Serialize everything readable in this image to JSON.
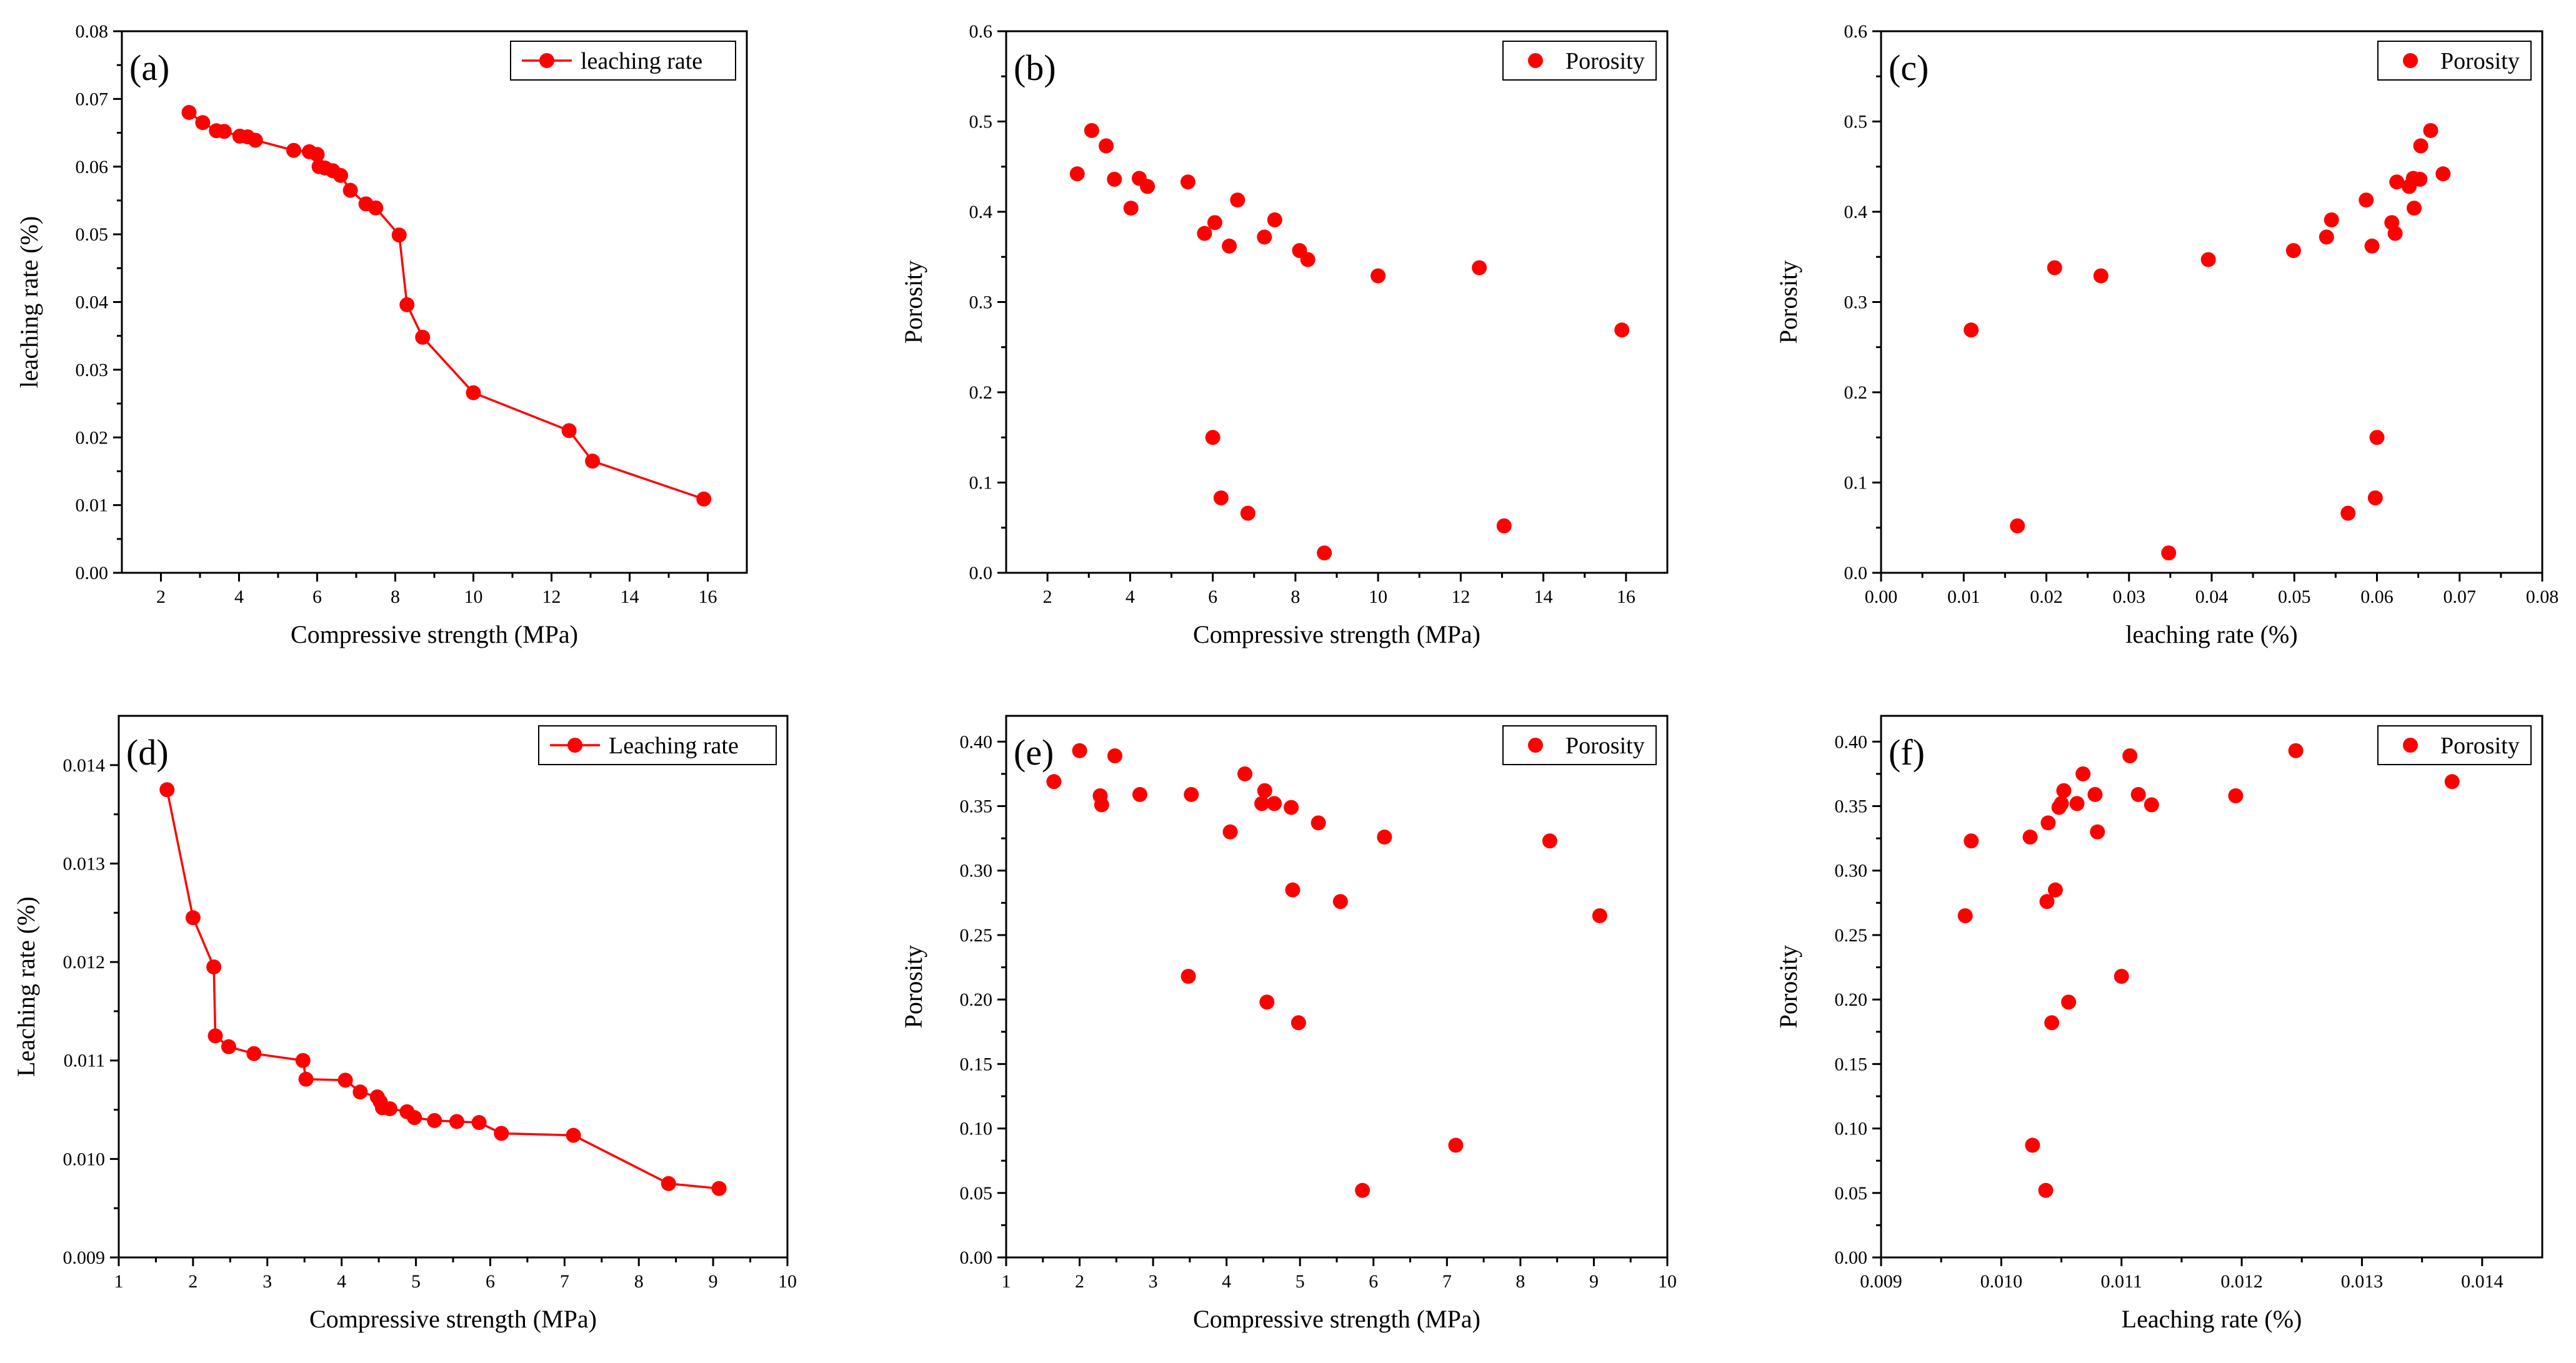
{
  "accent_color": "#ff0000",
  "chart_data": [
    {
      "id": "a",
      "panel_label": "(a)",
      "type": "line",
      "xlabel": "Compressive strength (MPa)",
      "ylabel": "leaching rate (%)",
      "xlim": [
        1,
        17
      ],
      "ylim": [
        0,
        0.08
      ],
      "xticks": [
        2,
        4,
        6,
        8,
        10,
        12,
        14,
        16
      ],
      "yticks": [
        0.0,
        0.01,
        0.02,
        0.03,
        0.04,
        0.05,
        0.06,
        0.07,
        0.08
      ],
      "yticklabels": [
        "0.00",
        "0.01",
        "0.02",
        "0.03",
        "0.04",
        "0.05",
        "0.06",
        "0.07",
        "0.08"
      ],
      "legend_position": "top-right",
      "series": [
        {
          "name": "leaching rate",
          "color": "#ff0000",
          "marker": "circle",
          "line": true,
          "x": [
            2.72,
            3.07,
            3.42,
            3.62,
            4.02,
            4.22,
            4.42,
            5.4,
            5.8,
            6.0,
            6.05,
            6.2,
            6.4,
            6.6,
            6.85,
            7.25,
            7.5,
            8.1,
            8.3,
            8.7,
            10.0,
            12.45,
            13.05,
            15.9
          ],
          "y": [
            0.068,
            0.0665,
            0.0653,
            0.0652,
            0.0645,
            0.0644,
            0.0639,
            0.0624,
            0.0622,
            0.0618,
            0.06,
            0.0598,
            0.0594,
            0.0587,
            0.0565,
            0.0545,
            0.0539,
            0.0499,
            0.0396,
            0.0348,
            0.0266,
            0.021,
            0.0165,
            0.0109
          ]
        }
      ]
    },
    {
      "id": "b",
      "panel_label": "(b)",
      "type": "scatter",
      "xlabel": "Compressive strength (MPa)",
      "ylabel": "Porosity",
      "xlim": [
        1,
        17
      ],
      "ylim": [
        0,
        0.6
      ],
      "xticks": [
        2,
        4,
        6,
        8,
        10,
        12,
        14,
        16
      ],
      "yticks": [
        0.0,
        0.1,
        0.2,
        0.3,
        0.4,
        0.5,
        0.6
      ],
      "yticklabels": [
        "0.0",
        "0.1",
        "0.2",
        "0.3",
        "0.4",
        "0.5",
        "0.6"
      ],
      "legend_position": "top-right",
      "series": [
        {
          "name": "Porosity",
          "color": "#ff0000",
          "marker": "circle",
          "line": false,
          "x": [
            2.72,
            3.07,
            3.42,
            3.62,
            4.02,
            4.22,
            4.42,
            5.4,
            5.8,
            6.0,
            6.05,
            6.2,
            6.4,
            6.6,
            6.85,
            7.25,
            7.5,
            8.1,
            8.3,
            8.7,
            10.0,
            12.45,
            13.05,
            15.9
          ],
          "y": [
            0.442,
            0.49,
            0.473,
            0.436,
            0.404,
            0.437,
            0.428,
            0.433,
            0.376,
            0.15,
            0.388,
            0.083,
            0.362,
            0.413,
            0.066,
            0.372,
            0.391,
            0.357,
            0.347,
            0.022,
            0.329,
            0.338,
            0.052,
            0.269
          ]
        }
      ]
    },
    {
      "id": "c",
      "panel_label": "(c)",
      "type": "scatter",
      "xlabel": "leaching rate (%)",
      "ylabel": "Porosity",
      "xlim": [
        0,
        0.08
      ],
      "ylim": [
        0,
        0.6
      ],
      "xticks": [
        0.0,
        0.01,
        0.02,
        0.03,
        0.04,
        0.05,
        0.06,
        0.07,
        0.08
      ],
      "xticklabels": [
        "0.00",
        "0.01",
        "0.02",
        "0.03",
        "0.04",
        "0.05",
        "0.06",
        "0.07",
        "0.08"
      ],
      "yticks": [
        0.0,
        0.1,
        0.2,
        0.3,
        0.4,
        0.5,
        0.6
      ],
      "yticklabels": [
        "0.0",
        "0.1",
        "0.2",
        "0.3",
        "0.4",
        "0.5",
        "0.6"
      ],
      "legend_position": "top-right",
      "series": [
        {
          "name": "Porosity",
          "color": "#ff0000",
          "marker": "circle",
          "line": false,
          "x": [
            0.068,
            0.0665,
            0.0653,
            0.0652,
            0.0645,
            0.0644,
            0.0639,
            0.0624,
            0.0622,
            0.0618,
            0.06,
            0.0598,
            0.0594,
            0.0587,
            0.0565,
            0.0545,
            0.0539,
            0.0499,
            0.0396,
            0.0348,
            0.0266,
            0.021,
            0.0165,
            0.0109
          ],
          "y": [
            0.442,
            0.49,
            0.473,
            0.436,
            0.404,
            0.437,
            0.428,
            0.433,
            0.376,
            0.388,
            0.15,
            0.083,
            0.362,
            0.413,
            0.066,
            0.391,
            0.372,
            0.357,
            0.347,
            0.022,
            0.329,
            0.338,
            0.052,
            0.269
          ]
        }
      ]
    },
    {
      "id": "d",
      "panel_label": "(d)",
      "type": "line",
      "xlabel": "Compressive strength (MPa)",
      "ylabel": "Leaching rate (%)",
      "xlim": [
        1,
        10
      ],
      "ylim": [
        0.009,
        0.0145
      ],
      "xticks": [
        1,
        2,
        3,
        4,
        5,
        6,
        7,
        8,
        9,
        10
      ],
      "yticks": [
        0.009,
        0.01,
        0.011,
        0.012,
        0.013,
        0.014
      ],
      "yticklabels": [
        "0.009",
        "0.010",
        "0.011",
        "0.012",
        "0.013",
        "0.014"
      ],
      "legend_position": "top-right",
      "series": [
        {
          "name": "Leaching rate",
          "color": "#ff0000",
          "marker": "circle",
          "line": true,
          "x": [
            1.65,
            2.0,
            2.28,
            2.3,
            2.48,
            2.82,
            3.48,
            3.52,
            4.05,
            4.25,
            4.48,
            4.52,
            4.55,
            4.65,
            4.88,
            4.98,
            5.25,
            5.55,
            5.85,
            6.15,
            7.12,
            8.4,
            9.08
          ],
          "y": [
            0.01375,
            0.01245,
            0.01195,
            0.01125,
            0.01114,
            0.01107,
            0.011,
            0.01081,
            0.0108,
            0.01068,
            0.01063,
            0.01058,
            0.01052,
            0.01051,
            0.01048,
            0.01042,
            0.01039,
            0.01038,
            0.01037,
            0.01026,
            0.01024,
            0.00975,
            0.0097
          ]
        }
      ]
    },
    {
      "id": "e",
      "panel_label": "(e)",
      "type": "scatter",
      "xlabel": "Compressive strength (MPa)",
      "ylabel": "Porosity",
      "xlim": [
        1,
        10
      ],
      "ylim": [
        0,
        0.42
      ],
      "xticks": [
        1,
        2,
        3,
        4,
        5,
        6,
        7,
        8,
        9,
        10
      ],
      "yticks": [
        0.0,
        0.05,
        0.1,
        0.15,
        0.2,
        0.25,
        0.3,
        0.35,
        0.4
      ],
      "yticklabels": [
        "0.00",
        "0.05",
        "0.10",
        "0.15",
        "0.20",
        "0.25",
        "0.30",
        "0.35",
        "0.40"
      ],
      "legend_position": "top-right",
      "series": [
        {
          "name": "Porosity",
          "color": "#ff0000",
          "marker": "circle",
          "line": false,
          "x": [
            1.65,
            2.0,
            2.28,
            2.3,
            2.48,
            2.82,
            3.48,
            3.52,
            4.05,
            4.25,
            4.48,
            4.52,
            4.55,
            4.65,
            4.88,
            4.9,
            4.98,
            5.25,
            5.55,
            5.85,
            6.15,
            7.12,
            8.4,
            9.08
          ],
          "y": [
            0.369,
            0.393,
            0.358,
            0.351,
            0.389,
            0.359,
            0.218,
            0.359,
            0.33,
            0.375,
            0.352,
            0.362,
            0.198,
            0.352,
            0.349,
            0.285,
            0.182,
            0.337,
            0.276,
            0.052,
            0.326,
            0.087,
            0.323,
            0.265
          ]
        }
      ]
    },
    {
      "id": "f",
      "panel_label": "(f)",
      "type": "scatter",
      "xlabel": "Leaching rate (%)",
      "ylabel": "Porosity",
      "xlim": [
        0.009,
        0.0145
      ],
      "ylim": [
        0,
        0.42
      ],
      "xticks": [
        0.009,
        0.01,
        0.011,
        0.012,
        0.013,
        0.014
      ],
      "xticklabels": [
        "0.009",
        "0.010",
        "0.011",
        "0.012",
        "0.013",
        "0.014"
      ],
      "yticks": [
        0.0,
        0.05,
        0.1,
        0.15,
        0.2,
        0.25,
        0.3,
        0.35,
        0.4
      ],
      "yticklabels": [
        "0.00",
        "0.05",
        "0.10",
        "0.15",
        "0.20",
        "0.25",
        "0.30",
        "0.35",
        "0.40"
      ],
      "legend_position": "top-right",
      "series": [
        {
          "name": "Porosity",
          "color": "#ff0000",
          "marker": "circle",
          "line": false,
          "x": [
            0.0097,
            0.00975,
            0.01024,
            0.01026,
            0.01037,
            0.01038,
            0.01039,
            0.01042,
            0.01045,
            0.01048,
            0.0105,
            0.01052,
            0.01056,
            0.01063,
            0.01068,
            0.01078,
            0.0108,
            0.011,
            0.01107,
            0.01114,
            0.01125,
            0.01195,
            0.01245,
            0.01375
          ],
          "y": [
            0.265,
            0.323,
            0.326,
            0.087,
            0.052,
            0.276,
            0.337,
            0.182,
            0.285,
            0.349,
            0.352,
            0.362,
            0.198,
            0.352,
            0.375,
            0.359,
            0.33,
            0.218,
            0.389,
            0.359,
            0.351,
            0.358,
            0.393,
            0.369
          ]
        }
      ]
    }
  ]
}
